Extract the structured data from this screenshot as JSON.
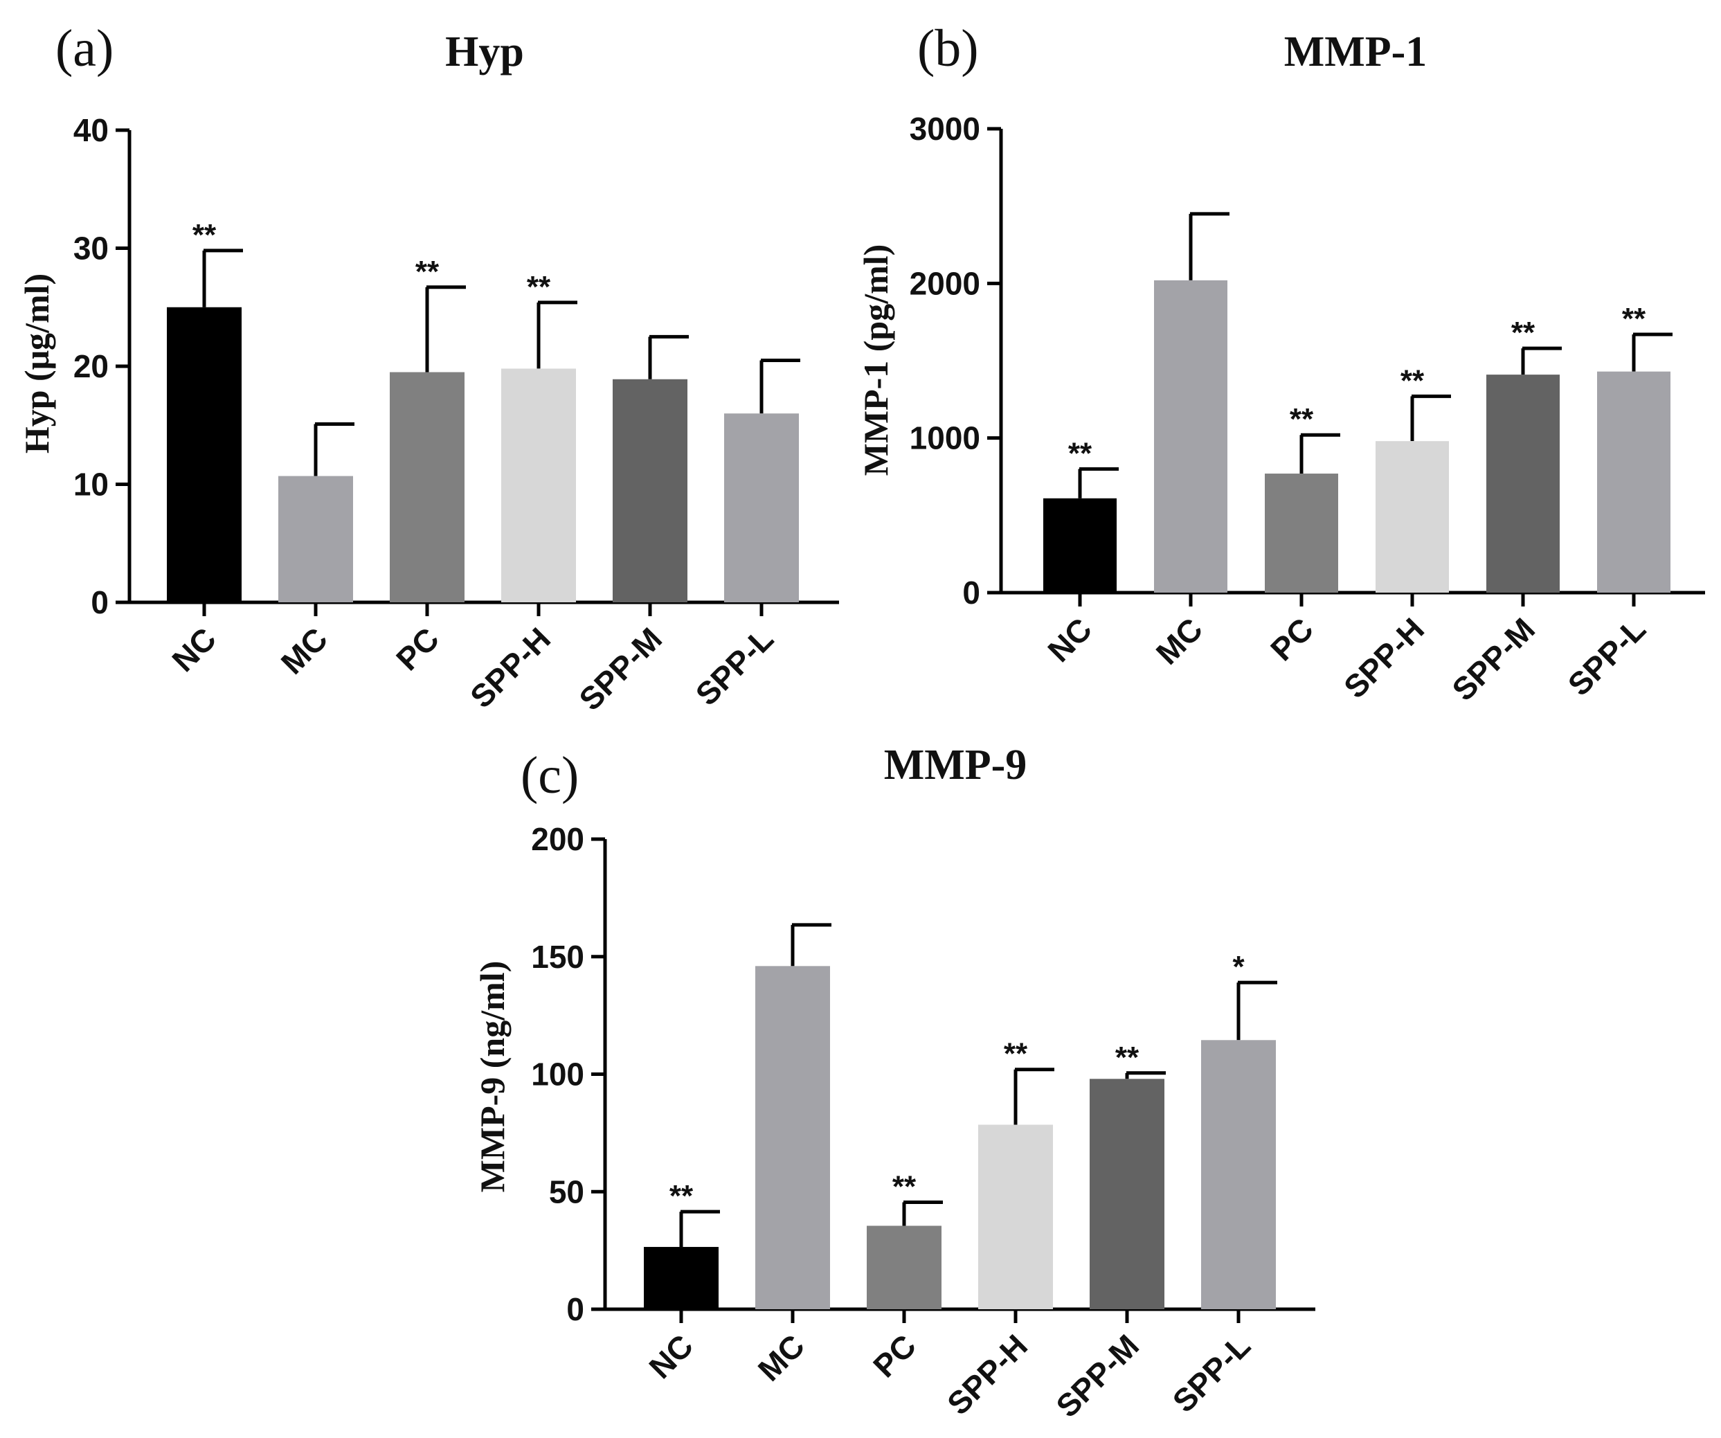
{
  "figure": {
    "panels": [
      {
        "letter": "(a)"
      },
      {
        "letter": "(b)"
      },
      {
        "letter": "(c)"
      }
    ]
  },
  "chart_data": [
    {
      "type": "bar",
      "title": "Hyp",
      "ylabel": "Hyp (μg/ml)",
      "xlabel": "",
      "ylim": [
        0,
        40
      ],
      "yticks": [
        0,
        10,
        20,
        30,
        40
      ],
      "categories": [
        "NC",
        "MC",
        "PC",
        "SPP-H",
        "SPP-M",
        "SPP-L"
      ],
      "values": [
        25.0,
        10.7,
        19.5,
        19.8,
        18.9,
        16.0
      ],
      "errors": [
        4.8,
        4.4,
        7.2,
        5.6,
        3.6,
        4.5
      ],
      "significance": [
        "**",
        "",
        "**",
        "**",
        "",
        ""
      ],
      "colors": [
        "#000000",
        "#a3a3a8",
        "#808080",
        "#d7d7d7",
        "#636363",
        "#a3a3a8"
      ]
    },
    {
      "type": "bar",
      "title": "MMP-1",
      "ylabel": "MMP-1 (pg/ml)",
      "xlabel": "",
      "ylim": [
        0,
        3000
      ],
      "yticks": [
        0,
        1000,
        2000,
        3000
      ],
      "categories": [
        "NC",
        "MC",
        "PC",
        "SPP-H",
        "SPP-M",
        "SPP-L"
      ],
      "values": [
        610,
        2020,
        770,
        980,
        1410,
        1430
      ],
      "errors": [
        190,
        430,
        250,
        290,
        170,
        240
      ],
      "significance": [
        "**",
        "",
        "**",
        "**",
        "**",
        "**"
      ],
      "colors": [
        "#000000",
        "#a3a3a8",
        "#808080",
        "#d7d7d7",
        "#636363",
        "#a3a3a8"
      ]
    },
    {
      "type": "bar",
      "title": "MMP-9",
      "ylabel": "MMP-9 (ng/ml)",
      "xlabel": "",
      "ylim": [
        0,
        200
      ],
      "yticks": [
        0,
        50,
        100,
        150,
        200
      ],
      "categories": [
        "NC",
        "MC",
        "PC",
        "SPP-H",
        "SPP-M",
        "SPP-L"
      ],
      "values": [
        26.5,
        146,
        35.5,
        78.5,
        98,
        114.5
      ],
      "errors": [
        15,
        17.5,
        10,
        23.5,
        2.5,
        24.5
      ],
      "significance": [
        "**",
        "",
        "**",
        "**",
        "**",
        "*"
      ],
      "colors": [
        "#000000",
        "#a3a3a8",
        "#808080",
        "#d7d7d7",
        "#636363",
        "#a3a3a8"
      ]
    }
  ]
}
